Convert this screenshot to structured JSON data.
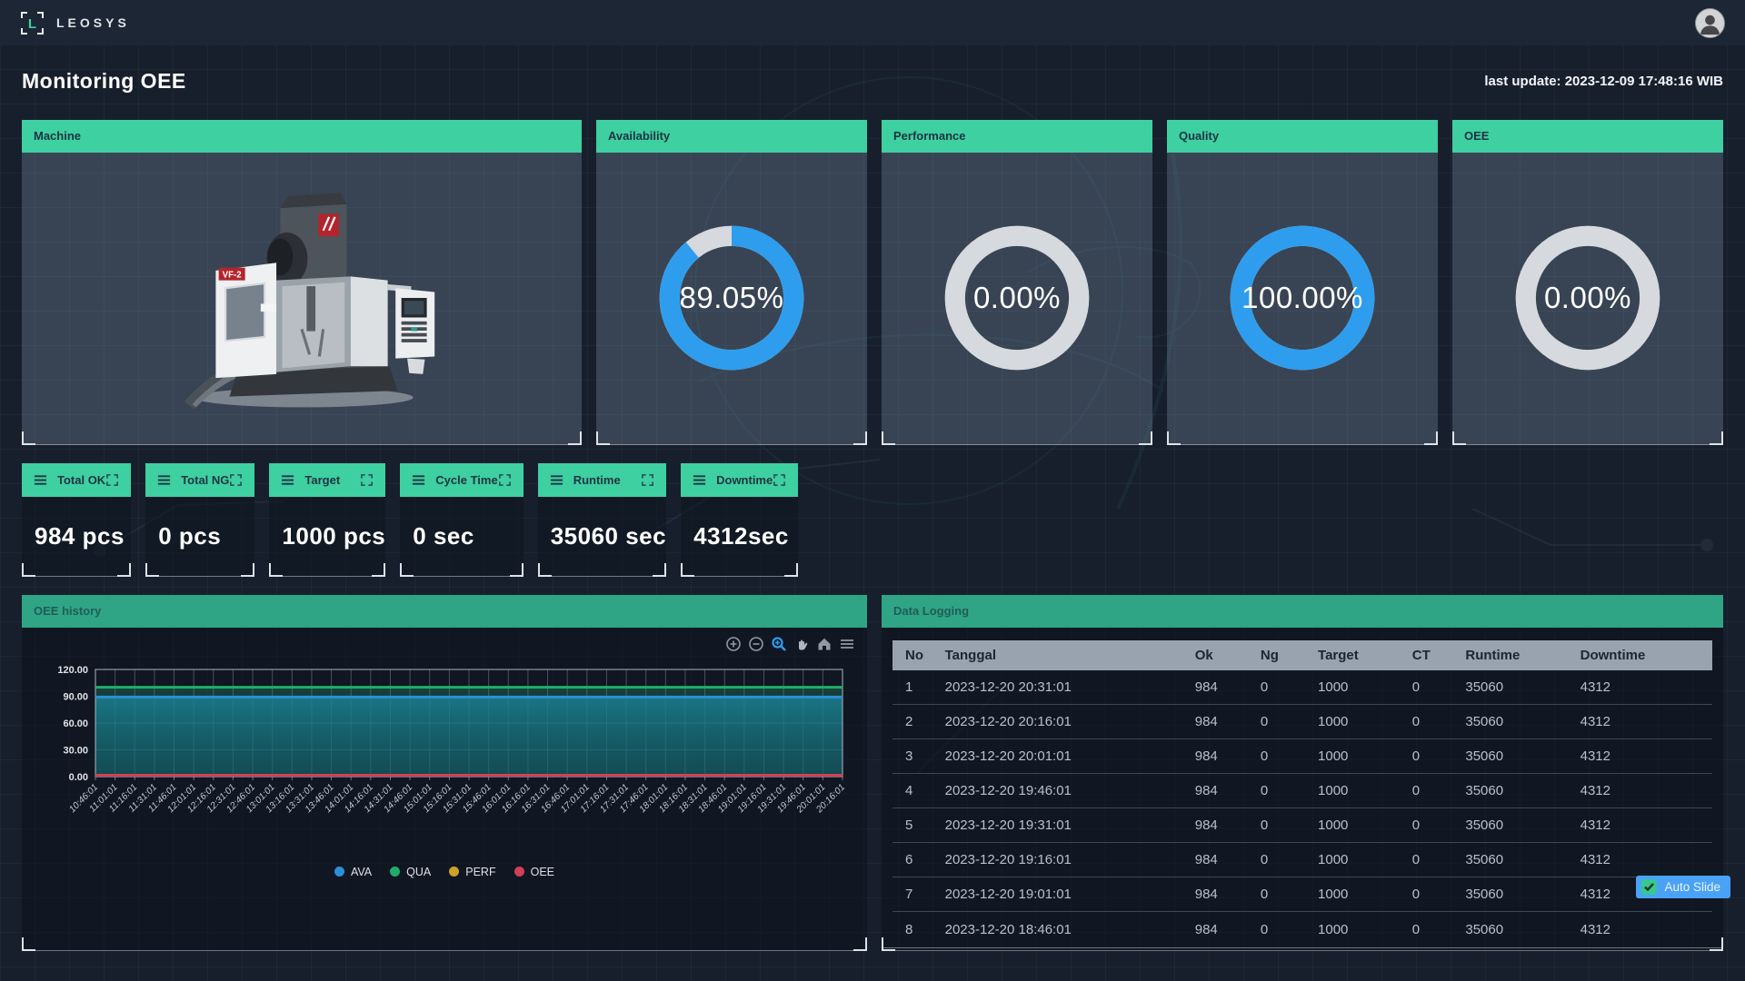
{
  "topbar": {
    "brand": "LEOSYS",
    "logo_letter": "L"
  },
  "header": {
    "title": "Monitoring OEE",
    "last_update": "last update: 2023-12-09 17:48:16 WIB"
  },
  "machine": {
    "title": "Machine",
    "model": "VF-2"
  },
  "gauges": [
    {
      "title": "Availability",
      "value": "89.05%",
      "pct": 89.05,
      "color": "#2f9ded"
    },
    {
      "title": "Performance",
      "value": "0.00%",
      "pct": 0,
      "color": "#2f9ded"
    },
    {
      "title": "Quality",
      "value": "100.00%",
      "pct": 100,
      "color": "#2f9ded"
    },
    {
      "title": "OEE",
      "value": "0.00%",
      "pct": 0,
      "color": "#2f9ded"
    }
  ],
  "stats": [
    {
      "title": "Total OK",
      "value": "984 pcs"
    },
    {
      "title": "Total NG",
      "value": "0 pcs"
    },
    {
      "title": "Target",
      "value": "1000 pcs"
    },
    {
      "title": "Cycle Time",
      "value": "0 sec"
    },
    {
      "title": "Runtime",
      "value": "35060 sec"
    },
    {
      "title": "Downtime",
      "value": "4312sec"
    }
  ],
  "chart_panel": {
    "title": "OEE history",
    "toolbar_icons": [
      "zoom-in",
      "zoom-out",
      "zoom-select",
      "pan",
      "reset-home",
      "menu"
    ]
  },
  "chart_data": {
    "type": "line",
    "title": "OEE history",
    "x": [
      "10:46:01",
      "11:01:01",
      "11:16:01",
      "11:31:01",
      "11:46:01",
      "12:01:01",
      "12:16:01",
      "12:31:01",
      "12:46:01",
      "13:01:01",
      "13:16:01",
      "13:31:01",
      "13:46:01",
      "14:01:01",
      "14:16:01",
      "14:31:01",
      "14:46:01",
      "15:01:01",
      "15:16:01",
      "15:31:01",
      "15:46:01",
      "16:01:01",
      "16:16:01",
      "16:31:01",
      "16:46:01",
      "17:01:01",
      "17:16:01",
      "17:31:01",
      "17:46:01",
      "18:01:01",
      "18:16:01",
      "18:31:01",
      "18:46:01",
      "19:01:01",
      "19:16:01",
      "19:31:01",
      "19:46:01",
      "20:01:01",
      "20:16:01"
    ],
    "series": [
      {
        "name": "AVA",
        "color": "#2b8fd6",
        "area": true,
        "values": [
          89.05,
          89.05,
          89.05,
          89.05,
          89.05,
          89.05,
          89.05,
          89.05,
          89.05,
          89.05,
          89.05,
          89.05,
          89.05,
          89.05,
          89.05,
          89.05,
          89.05,
          89.05,
          89.05,
          89.05,
          89.05,
          89.05,
          89.05,
          89.05,
          89.05,
          89.05,
          89.05,
          89.05,
          89.05,
          89.05,
          89.05,
          89.05,
          89.05,
          89.05,
          89.05,
          89.05,
          89.05,
          89.05,
          89.05
        ]
      },
      {
        "name": "QUA",
        "color": "#1fae6a",
        "area": true,
        "values": [
          100,
          100,
          100,
          100,
          100,
          100,
          100,
          100,
          100,
          100,
          100,
          100,
          100,
          100,
          100,
          100,
          100,
          100,
          100,
          100,
          100,
          100,
          100,
          100,
          100,
          100,
          100,
          100,
          100,
          100,
          100,
          100,
          100,
          100,
          100,
          100,
          100,
          100,
          100
        ]
      },
      {
        "name": "PERF",
        "color": "#cfa02a",
        "area": false,
        "values": [
          0,
          0,
          0,
          0,
          0,
          0,
          0,
          0,
          0,
          0,
          0,
          0,
          0,
          0,
          0,
          0,
          0,
          0,
          0,
          0,
          0,
          0,
          0,
          0,
          0,
          0,
          0,
          0,
          0,
          0,
          0,
          0,
          0,
          0,
          0,
          0,
          0,
          0,
          0
        ]
      },
      {
        "name": "OEE",
        "color": "#d24055",
        "area": false,
        "values": [
          0,
          0,
          0,
          0,
          0,
          0,
          0,
          0,
          0,
          0,
          0,
          0,
          0,
          0,
          0,
          0,
          0,
          0,
          0,
          0,
          0,
          0,
          0,
          0,
          0,
          0,
          0,
          0,
          0,
          0,
          0,
          0,
          0,
          0,
          0,
          0,
          0,
          0,
          0
        ]
      }
    ],
    "ylim": [
      0,
      120
    ],
    "yticks": [
      0,
      30,
      60,
      90,
      120
    ],
    "ytick_labels": [
      "0.00",
      "30.00",
      "60.00",
      "90.00",
      "120.00"
    ],
    "grid": true,
    "legend_position": "bottom"
  },
  "table": {
    "title": "Data Logging",
    "columns": [
      "No",
      "Tanggal",
      "Ok",
      "Ng",
      "Target",
      "CT",
      "Runtime",
      "Downtime"
    ],
    "rows": [
      [
        "1",
        "2023-12-20 20:31:01",
        "984",
        "0",
        "1000",
        "0",
        "35060",
        "4312"
      ],
      [
        "2",
        "2023-12-20 20:16:01",
        "984",
        "0",
        "1000",
        "0",
        "35060",
        "4312"
      ],
      [
        "3",
        "2023-12-20 20:01:01",
        "984",
        "0",
        "1000",
        "0",
        "35060",
        "4312"
      ],
      [
        "4",
        "2023-12-20 19:46:01",
        "984",
        "0",
        "1000",
        "0",
        "35060",
        "4312"
      ],
      [
        "5",
        "2023-12-20 19:31:01",
        "984",
        "0",
        "1000",
        "0",
        "35060",
        "4312"
      ],
      [
        "6",
        "2023-12-20 19:16:01",
        "984",
        "0",
        "1000",
        "0",
        "35060",
        "4312"
      ],
      [
        "7",
        "2023-12-20 19:01:01",
        "984",
        "0",
        "1000",
        "0",
        "35060",
        "4312"
      ],
      [
        "8",
        "2023-12-20 18:46:01",
        "984",
        "0",
        "1000",
        "0",
        "35060",
        "4312"
      ]
    ]
  },
  "auto_slide": {
    "label": "Auto Slide",
    "checked": true
  },
  "colors": {
    "accent_green": "#3ed0a0",
    "muted_green": "#2fa585",
    "gauge_blue": "#2f9ded",
    "gauge_track": "#d6d9dd",
    "accent_blue": "#4aa2f6",
    "topbar": "#1c2634",
    "background": "#171f2c"
  }
}
